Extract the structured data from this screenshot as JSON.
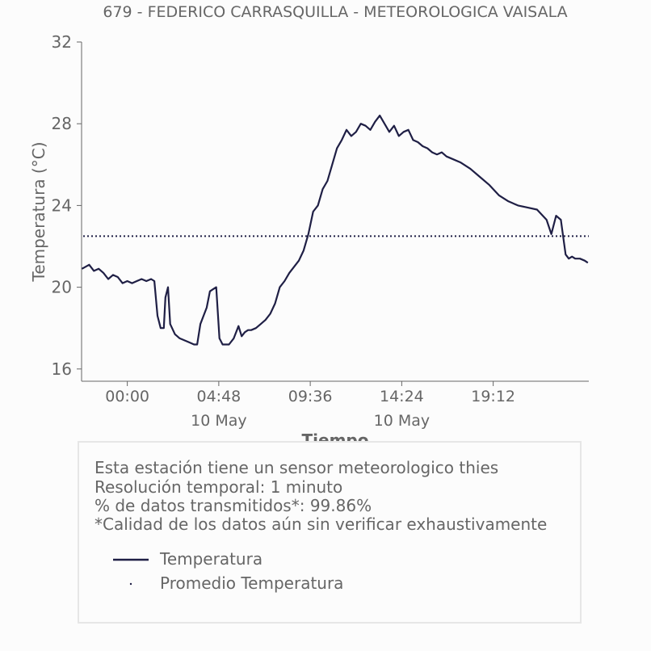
{
  "colors": {
    "line": "#1f1f45",
    "text": "#666666",
    "box_border": "#e6e6e6",
    "background": "#fcfcfc"
  },
  "chart_data": {
    "type": "line",
    "title": "679 - FEDERICO CARRASQUILLA - METEOROLOGICA VAISALA",
    "xlabel": "Tiempo",
    "ylabel": "Temperatura (°C)",
    "ylim": [
      15.4,
      32
    ],
    "yticks": [
      16,
      20,
      24,
      28,
      32
    ],
    "xlim": [
      "09 May 21:36",
      "11 May 00:13"
    ],
    "xticks": [
      {
        "time": "10 May 00:00",
        "label": "00:00",
        "sublabel": ""
      },
      {
        "time": "10 May 04:48",
        "label": "04:48",
        "sublabel": "10 May"
      },
      {
        "time": "10 May 09:36",
        "label": "09:36",
        "sublabel": ""
      },
      {
        "time": "10 May 14:24",
        "label": "14:24",
        "sublabel": "10 May"
      },
      {
        "time": "10 May 19:12",
        "label": "19:12",
        "sublabel": ""
      }
    ],
    "grid": false,
    "series": [
      {
        "name": "Temperatura",
        "style": "solid",
        "x": [
          "09 May 21:37",
          "09 May 22:00",
          "09 May 22:15",
          "09 May 22:30",
          "09 May 22:45",
          "09 May 23:00",
          "09 May 23:15",
          "09 May 23:30",
          "09 May 23:45",
          "10 May 00:00",
          "10 May 00:15",
          "10 May 00:30",
          "10 May 00:45",
          "10 May 01:00",
          "10 May 01:15",
          "10 May 01:25",
          "10 May 01:35",
          "10 May 01:45",
          "10 May 01:55",
          "10 May 02:00",
          "10 May 02:08",
          "10 May 02:15",
          "10 May 02:30",
          "10 May 02:45",
          "10 May 03:00",
          "10 May 03:15",
          "10 May 03:30",
          "10 May 03:40",
          "10 May 03:50",
          "10 May 04:00",
          "10 May 04:10",
          "10 May 04:20",
          "10 May 04:30",
          "10 May 04:40",
          "10 May 04:50",
          "10 May 05:00",
          "10 May 05:10",
          "10 May 05:20",
          "10 May 05:35",
          "10 May 05:50",
          "10 May 06:00",
          "10 May 06:10",
          "10 May 06:20",
          "10 May 06:30",
          "10 May 06:45",
          "10 May 07:00",
          "10 May 07:15",
          "10 May 07:30",
          "10 May 07:45",
          "10 May 08:00",
          "10 May 08:15",
          "10 May 08:30",
          "10 May 08:45",
          "10 May 09:00",
          "10 May 09:15",
          "10 May 09:30",
          "10 May 09:45",
          "10 May 10:00",
          "10 May 10:15",
          "10 May 10:30",
          "10 May 10:45",
          "10 May 11:00",
          "10 May 11:15",
          "10 May 11:30",
          "10 May 11:45",
          "10 May 12:00",
          "10 May 12:15",
          "10 May 12:30",
          "10 May 12:45",
          "10 May 13:00",
          "10 May 13:15",
          "10 May 13:30",
          "10 May 13:45",
          "10 May 14:00",
          "10 May 14:15",
          "10 May 14:30",
          "10 May 14:45",
          "10 May 15:00",
          "10 May 15:15",
          "10 May 15:30",
          "10 May 15:45",
          "10 May 16:00",
          "10 May 16:15",
          "10 May 16:30",
          "10 May 16:45",
          "10 May 17:00",
          "10 May 17:30",
          "10 May 18:00",
          "10 May 18:30",
          "10 May 19:00",
          "10 May 19:30",
          "10 May 20:00",
          "10 May 20:30",
          "10 May 21:00",
          "10 May 21:30",
          "10 May 22:00",
          "10 May 22:15",
          "10 May 22:30",
          "10 May 22:45",
          "10 May 23:00",
          "10 May 23:10",
          "10 May 23:20",
          "10 May 23:30",
          "10 May 23:45",
          "11 May 00:00",
          "11 May 00:10"
        ],
        "y": [
          20.9,
          21.1,
          20.8,
          20.9,
          20.7,
          20.4,
          20.6,
          20.5,
          20.2,
          20.3,
          20.2,
          20.3,
          20.4,
          20.3,
          20.4,
          20.3,
          18.6,
          18.0,
          18.0,
          19.5,
          20.0,
          18.2,
          17.7,
          17.5,
          17.4,
          17.3,
          17.2,
          17.2,
          18.2,
          18.6,
          19.0,
          19.8,
          19.9,
          20.0,
          17.5,
          17.2,
          17.2,
          17.2,
          17.5,
          18.1,
          17.6,
          17.8,
          17.9,
          17.9,
          18.0,
          18.2,
          18.4,
          18.7,
          19.2,
          20.0,
          20.3,
          20.7,
          21.0,
          21.3,
          21.8,
          22.6,
          23.7,
          24.0,
          24.8,
          25.2,
          26.0,
          26.8,
          27.2,
          27.7,
          27.4,
          27.6,
          28.0,
          27.9,
          27.7,
          28.1,
          28.4,
          28.0,
          27.6,
          27.9,
          27.4,
          27.6,
          27.7,
          27.2,
          27.1,
          26.9,
          26.8,
          26.6,
          26.5,
          26.6,
          26.4,
          26.3,
          26.1,
          25.8,
          25.4,
          25.0,
          24.5,
          24.2,
          24.0,
          23.9,
          23.8,
          23.3,
          22.6,
          23.5,
          23.3,
          21.6,
          21.4,
          21.5,
          21.4,
          21.4,
          21.3,
          21.2
        ]
      },
      {
        "name": "Promedio Temperatura",
        "style": "dotted",
        "value": 22.5
      }
    ],
    "legend": {
      "placement": "bottom-box",
      "entries": [
        "Temperatura",
        "Promedio Temperatura"
      ]
    }
  },
  "info": {
    "line1": "Esta estación tiene un sensor meteorologico thies",
    "line2": "Resolución temporal: 1 minuto",
    "line3": "% de datos transmitidos*: 99.86%",
    "line4": "*Calidad de los datos aún sin verificar exhaustivamente"
  }
}
